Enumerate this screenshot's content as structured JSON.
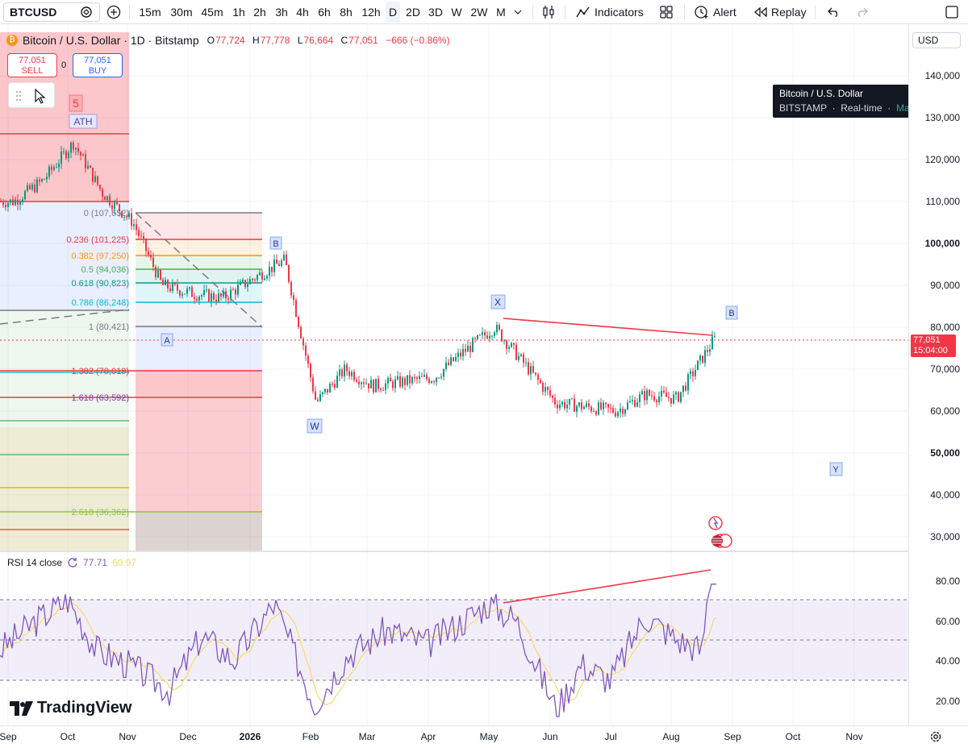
{
  "toolbar": {
    "symbol": "BTCUSD",
    "intervals": [
      "15m",
      "30m",
      "45m",
      "1h",
      "2h",
      "3h",
      "4h",
      "6h",
      "8h",
      "12h",
      "D",
      "2D",
      "3D",
      "W",
      "2W",
      "M"
    ],
    "active_interval": "D",
    "indicators_label": "Indicators",
    "alert_label": "Alert",
    "replay_label": "Replay",
    "icons": [
      "symbol-search-icon",
      "add-compare-icon",
      "chevron-down-icon",
      "candles-icon",
      "indicators-icon",
      "templates-icon",
      "alert-icon",
      "replay-icon",
      "undo-icon",
      "redo-icon",
      "fullscreen-icon"
    ]
  },
  "legend": {
    "title": "Bitcoin / U.S. Dollar · 1D · Bitstamp",
    "o_label": "O",
    "o": "77,724",
    "h_label": "H",
    "h": "77,778",
    "l_label": "L",
    "l": "76,664",
    "c_label": "C",
    "c": "77,051",
    "change": "−666 (−0.86%)"
  },
  "trade": {
    "sell_price": "77,051",
    "sell_label": "SELL",
    "buy_price": "77,051",
    "buy_label": "BUY",
    "spread": "0"
  },
  "tooltip": {
    "line1": "Bitcoin / U.S. Dollar",
    "exchange": "BITSTAMP",
    "realtime": "Real-time",
    "status": "Market open"
  },
  "price_scale": {
    "currency": "USD",
    "ticks": [
      {
        "label": "140,000",
        "bold": false
      },
      {
        "label": "130,000",
        "bold": false
      },
      {
        "label": "120,000",
        "bold": false
      },
      {
        "label": "110,000",
        "bold": false
      },
      {
        "label": "100,000",
        "bold": true
      },
      {
        "label": "90,000",
        "bold": false
      },
      {
        "label": "80,000",
        "bold": false
      },
      {
        "label": "70,000",
        "bold": false
      },
      {
        "label": "60,000",
        "bold": false
      },
      {
        "label": "50,000",
        "bold": true
      },
      {
        "label": "40,000",
        "bold": false
      },
      {
        "label": "30,000",
        "bold": false
      }
    ],
    "last_price": "77,051",
    "countdown": "15:04:00",
    "rsi_ticks": [
      "80.00",
      "60.00",
      "40.00",
      "20.00"
    ]
  },
  "rsi": {
    "label": "RSI 14 close",
    "value": "77.71",
    "ma_value": "60.97"
  },
  "fib": {
    "levels": [
      {
        "label": "0 (107,652)",
        "ratio": 0,
        "price": 107652,
        "color": "#787b86"
      },
      {
        "label": "0.236 (101,225)",
        "ratio": 0.236,
        "price": 101225,
        "color": "#f23645"
      },
      {
        "label": "0.382 (97,250)",
        "ratio": 0.382,
        "price": 97250,
        "color": "#ff9800"
      },
      {
        "label": "0.5 (94,036)",
        "ratio": 0.5,
        "price": 94036,
        "color": "#4caf50"
      },
      {
        "label": "0.618 (90,823)",
        "ratio": 0.618,
        "price": 90823,
        "color": "#089981"
      },
      {
        "label": "0.786 (86,248)",
        "ratio": 0.786,
        "price": 86248,
        "color": "#00bcd4"
      },
      {
        "label": "1 (80,421)",
        "ratio": 1,
        "price": 80421,
        "color": "#787b86"
      },
      {
        "label": "1.382 (70,019)",
        "ratio": 1.382,
        "price": 70019,
        "color": "#f23645"
      },
      {
        "label": "1.618 (63,592)",
        "ratio": 1.618,
        "price": 63592,
        "color": "#9c27b0"
      },
      {
        "label": "2.618 (36,362)",
        "ratio": 2.618,
        "price": 36362,
        "color": "#8bc34a"
      }
    ]
  },
  "wave_labels": [
    "5",
    "ATH",
    "A",
    "B",
    "W",
    "X",
    "B",
    "Y"
  ],
  "time_axis": [
    {
      "label": "Sep",
      "bold": false
    },
    {
      "label": "Oct",
      "bold": false
    },
    {
      "label": "Nov",
      "bold": false
    },
    {
      "label": "Dec",
      "bold": false
    },
    {
      "label": "2026",
      "bold": true
    },
    {
      "label": "Feb",
      "bold": false
    },
    {
      "label": "Mar",
      "bold": false
    },
    {
      "label": "Apr",
      "bold": false
    },
    {
      "label": "May",
      "bold": false
    },
    {
      "label": "Jun",
      "bold": false
    },
    {
      "label": "Jul",
      "bold": false
    },
    {
      "label": "Aug",
      "bold": false
    },
    {
      "label": "Sep",
      "bold": false
    },
    {
      "label": "Oct",
      "bold": false
    },
    {
      "label": "Nov",
      "bold": false
    }
  ],
  "brand": "TradingView",
  "colors": {
    "up": "#089981",
    "down": "#f23645",
    "rsi": "#7e57c2",
    "rsi_ma": "#f7d96a",
    "accent": "#2962ff"
  },
  "chart_data": [
    {
      "type": "candlestick",
      "title": "Bitcoin / U.S. Dollar · 1D · Bitstamp",
      "ylim": [
        25000,
        150000
      ],
      "x_range": [
        "Sep",
        "Nov"
      ],
      "key_closes": [
        {
          "x": "Sep",
          "y": 110000
        },
        {
          "x": "Sep",
          "y": 115000
        },
        {
          "x": "Oct",
          "y": 124000
        },
        {
          "x": "Oct",
          "y": 112000
        },
        {
          "x": "Nov",
          "y": 105000
        },
        {
          "x": "Nov",
          "y": 90000
        },
        {
          "x": "Dec",
          "y": 88000
        },
        {
          "x": "Dec",
          "y": 87000
        },
        {
          "x": "2026",
          "y": 92000
        },
        {
          "x": "2026",
          "y": 96000
        },
        {
          "x": "Feb",
          "y": 62000
        },
        {
          "x": "Feb",
          "y": 70000
        },
        {
          "x": "Mar",
          "y": 66000
        },
        {
          "x": "Apr",
          "y": 68000
        },
        {
          "x": "Apr",
          "y": 74000
        },
        {
          "x": "May",
          "y": 80000
        },
        {
          "x": "Jun",
          "y": 62000
        },
        {
          "x": "Jul",
          "y": 60000
        },
        {
          "x": "Jul",
          "y": 64000
        },
        {
          "x": "Aug",
          "y": 63000
        },
        {
          "x": "Aug",
          "y": 77051
        }
      ],
      "last": 77051,
      "trendline": [
        {
          "x": "May",
          "y": 81000
        },
        {
          "x": "Aug",
          "y": 78000
        }
      ]
    },
    {
      "type": "line",
      "name": "RSI 14 close",
      "ylim": [
        10,
        90
      ],
      "bands": [
        30,
        50,
        70
      ],
      "last": 77.71,
      "ma_last": 60.97
    }
  ]
}
